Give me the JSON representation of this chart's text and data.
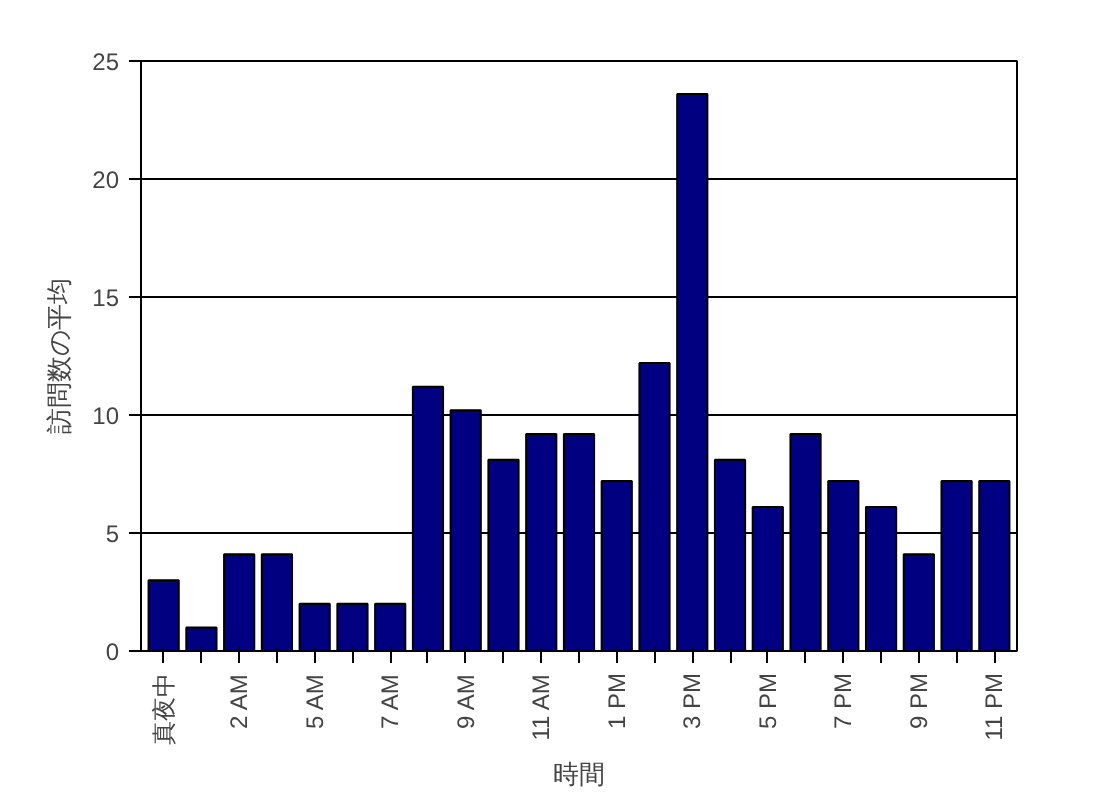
{
  "chart_data": {
    "type": "bar",
    "xlabel": "時間",
    "ylabel": "訪問数の平均",
    "categories": [
      "真夜中",
      null,
      "2 AM",
      null,
      "5 AM",
      null,
      "7 AM",
      null,
      "9 AM",
      null,
      "11 AM",
      null,
      "1 PM",
      null,
      "3 PM",
      null,
      "5 PM",
      null,
      "7 PM",
      null,
      "9 PM",
      null,
      "11 PM"
    ],
    "values": [
      3.0,
      1.0,
      4.1,
      4.1,
      2.0,
      2.0,
      2.0,
      11.2,
      10.2,
      8.1,
      9.2,
      9.2,
      7.2,
      12.2,
      23.6,
      8.1,
      6.1,
      9.2,
      7.2,
      6.1,
      4.1,
      7.2,
      7.2
    ],
    "color": "#000080",
    "ylim": [
      0,
      25
    ],
    "yticks": [
      0,
      5,
      10,
      15,
      20,
      25
    ],
    "grid": "y"
  }
}
